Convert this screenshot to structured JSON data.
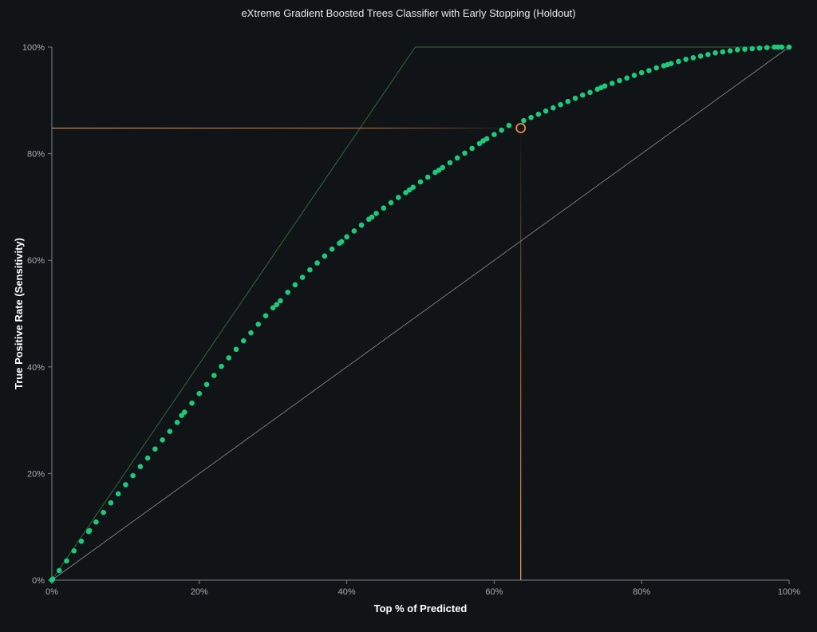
{
  "chart_data": {
    "type": "scatter",
    "title": "eXtreme Gradient Boosted Trees Classifier with Early Stopping (Holdout)",
    "xlabel": "Top % of Predicted",
    "ylabel": "True Positive Rate (Sensitivity)",
    "xlim": [
      0,
      100
    ],
    "ylim": [
      0,
      100
    ],
    "x_ticks": [
      "0%",
      "20%",
      "40%",
      "60%",
      "80%",
      "100%"
    ],
    "y_ticks": [
      "0%",
      "20%",
      "40%",
      "60%",
      "80%",
      "100%"
    ],
    "grid": false,
    "legend": "none",
    "colors": {
      "background": "#111417",
      "points": "#1ec97a",
      "selected": "#f08a3a",
      "ideal_line": "#2f6a3a",
      "random_line": "#8a8f94",
      "axis": "#7d8287"
    },
    "ideal_line": [
      [
        0,
        0
      ],
      [
        49.3,
        100
      ],
      [
        100,
        100
      ]
    ],
    "random_line": [
      [
        0,
        0
      ],
      [
        100,
        100
      ]
    ],
    "selected_point": {
      "x": 63.6,
      "y": 84.8
    },
    "points": [
      [
        0,
        0
      ],
      [
        0.1,
        0.2
      ],
      [
        1,
        1.8
      ],
      [
        2,
        3.6
      ],
      [
        3,
        5.5
      ],
      [
        4,
        7.3
      ],
      [
        5,
        9.1
      ],
      [
        5.1,
        9.3
      ],
      [
        6,
        10.9
      ],
      [
        7,
        12.7
      ],
      [
        8,
        14.5
      ],
      [
        9,
        16.2
      ],
      [
        10,
        17.9
      ],
      [
        11,
        19.6
      ],
      [
        12,
        21.3
      ],
      [
        13,
        22.9
      ],
      [
        14,
        24.6
      ],
      [
        15,
        26.3
      ],
      [
        16,
        27.9
      ],
      [
        17,
        29.6
      ],
      [
        17.6,
        30.9
      ],
      [
        18,
        31.5
      ],
      [
        19,
        33.2
      ],
      [
        20,
        35
      ],
      [
        21,
        36.7
      ],
      [
        22,
        38.4
      ],
      [
        23,
        40.1
      ],
      [
        24,
        41.7
      ],
      [
        25,
        43.3
      ],
      [
        26,
        44.9
      ],
      [
        27,
        46.4
      ],
      [
        28,
        48
      ],
      [
        29,
        49.6
      ],
      [
        30,
        51.1
      ],
      [
        30.5,
        51.7
      ],
      [
        31,
        52.4
      ],
      [
        32,
        54
      ],
      [
        33,
        55.4
      ],
      [
        34,
        56.8
      ],
      [
        35,
        58.2
      ],
      [
        36,
        59.5
      ],
      [
        37,
        60.8
      ],
      [
        38,
        62.1
      ],
      [
        39,
        63.2
      ],
      [
        39.3,
        63.5
      ],
      [
        40,
        64.4
      ],
      [
        41,
        65.5
      ],
      [
        42,
        66.6
      ],
      [
        43,
        67.7
      ],
      [
        43.4,
        68.1
      ],
      [
        44,
        68.8
      ],
      [
        45,
        69.8
      ],
      [
        46,
        70.8
      ],
      [
        47,
        71.8
      ],
      [
        48,
        72.7
      ],
      [
        48.5,
        73.2
      ],
      [
        49,
        73.7
      ],
      [
        50,
        74.7
      ],
      [
        51,
        75.6
      ],
      [
        52,
        76.5
      ],
      [
        52.5,
        76.9
      ],
      [
        53,
        77.4
      ],
      [
        54,
        78.3
      ],
      [
        55,
        79.2
      ],
      [
        56,
        80.1
      ],
      [
        57,
        81
      ],
      [
        58,
        81.9
      ],
      [
        58.5,
        82.4
      ],
      [
        59,
        82.8
      ],
      [
        60,
        83.6
      ],
      [
        61,
        84.4
      ],
      [
        62,
        85.3
      ],
      [
        64,
        86.2
      ],
      [
        65,
        86.8
      ],
      [
        66,
        87.4
      ],
      [
        67,
        88
      ],
      [
        68,
        88.6
      ],
      [
        69,
        89.2
      ],
      [
        70,
        89.8
      ],
      [
        71,
        90.4
      ],
      [
        72,
        91
      ],
      [
        73,
        91.5
      ],
      [
        74,
        92.1
      ],
      [
        74.5,
        92.4
      ],
      [
        75,
        92.7
      ],
      [
        76,
        93.2
      ],
      [
        77,
        93.7
      ],
      [
        78,
        94.2
      ],
      [
        79,
        94.7
      ],
      [
        80,
        95.2
      ],
      [
        81,
        95.6
      ],
      [
        82,
        96.1
      ],
      [
        83,
        96.5
      ],
      [
        83.5,
        96.7
      ],
      [
        84,
        96.9
      ],
      [
        85,
        97.3
      ],
      [
        86,
        97.7
      ],
      [
        87,
        98
      ],
      [
        88,
        98.3
      ],
      [
        89,
        98.6
      ],
      [
        90,
        98.9
      ],
      [
        91,
        99.1
      ],
      [
        92,
        99.3
      ],
      [
        93,
        99.5
      ],
      [
        94,
        99.6
      ],
      [
        95,
        99.7
      ],
      [
        96,
        99.8
      ],
      [
        97,
        99.9
      ],
      [
        98,
        100
      ],
      [
        98.5,
        100
      ],
      [
        99,
        100
      ],
      [
        100,
        100
      ]
    ]
  }
}
